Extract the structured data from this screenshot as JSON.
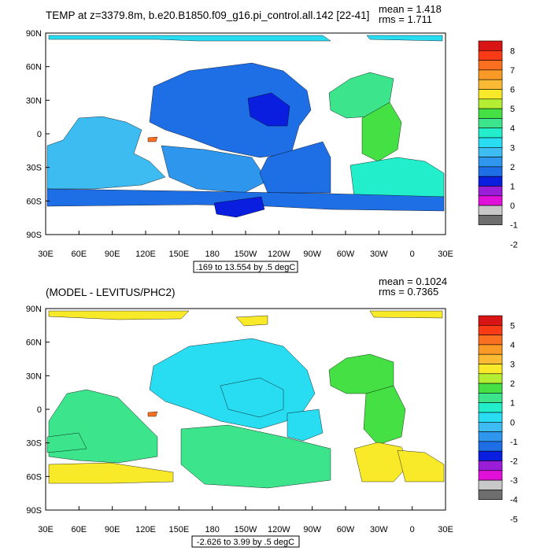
{
  "palette": [
    "#6e6e6e",
    "#c8c8c8",
    "#e010d8",
    "#9a1ed8",
    "#0a1ee0",
    "#1e6ee6",
    "#2e96ec",
    "#3cbcf0",
    "#28dcf2",
    "#22eecc",
    "#3ce48c",
    "#44e044",
    "#b4ee32",
    "#f8ea28",
    "#faba34",
    "#fa9a26",
    "#fa7020",
    "#f83a16",
    "#d81414"
  ],
  "panels": [
    {
      "title": "TEMP at z=3379.8m, b.e20.B1850.f09_g16.pi_control.all.142 [22-41]",
      "mean_label": "mean = 1.418",
      "rms_label": "rms = 1.711",
      "range_note": ".169 to 13.554 by .5 degC",
      "colorbar_labels": [
        "8",
        "7",
        "6",
        "5",
        "4",
        "3",
        "2",
        "1",
        "0",
        "-1",
        "-2"
      ],
      "regions": {
        "arctic": 8,
        "pacific_north": 5,
        "pacific_core": 4,
        "pacific_west": 6,
        "pacific_south": 5,
        "indian": 7,
        "atlantic_north": 10,
        "atlantic_mid": 11,
        "atlantic_south": 9,
        "southern": 5,
        "ross": 4,
        "med": 16
      }
    },
    {
      "title": "(MODEL - LEVITUS/PHC2)",
      "mean_label": "mean = 0.1024",
      "rms_label": "rms = 0.7365",
      "range_note": "-2.626 to 3.99 by .5 degC",
      "colorbar_labels": [
        "5",
        "4",
        "3",
        "2",
        "1",
        "0",
        "-1",
        "-2",
        "-3",
        "-4",
        "-5"
      ],
      "regions": {
        "arctic": 13,
        "pacific_north": 8,
        "pacific_core": 8,
        "pacific_west": 8,
        "pacific_south": 10,
        "indian": 10,
        "atlantic_north": 11,
        "atlantic_mid": 11,
        "atlantic_south": 13,
        "southern": 13,
        "ross": 10,
        "med": 16
      }
    }
  ],
  "axes": {
    "lat_ticks": [
      "90N",
      "60N",
      "30N",
      "0",
      "30S",
      "60S",
      "90S"
    ],
    "lon_ticks": [
      "30E",
      "60E",
      "90E",
      "120E",
      "150E",
      "180",
      "150W",
      "120W",
      "90W",
      "60W",
      "30W",
      "0",
      "30E"
    ]
  }
}
